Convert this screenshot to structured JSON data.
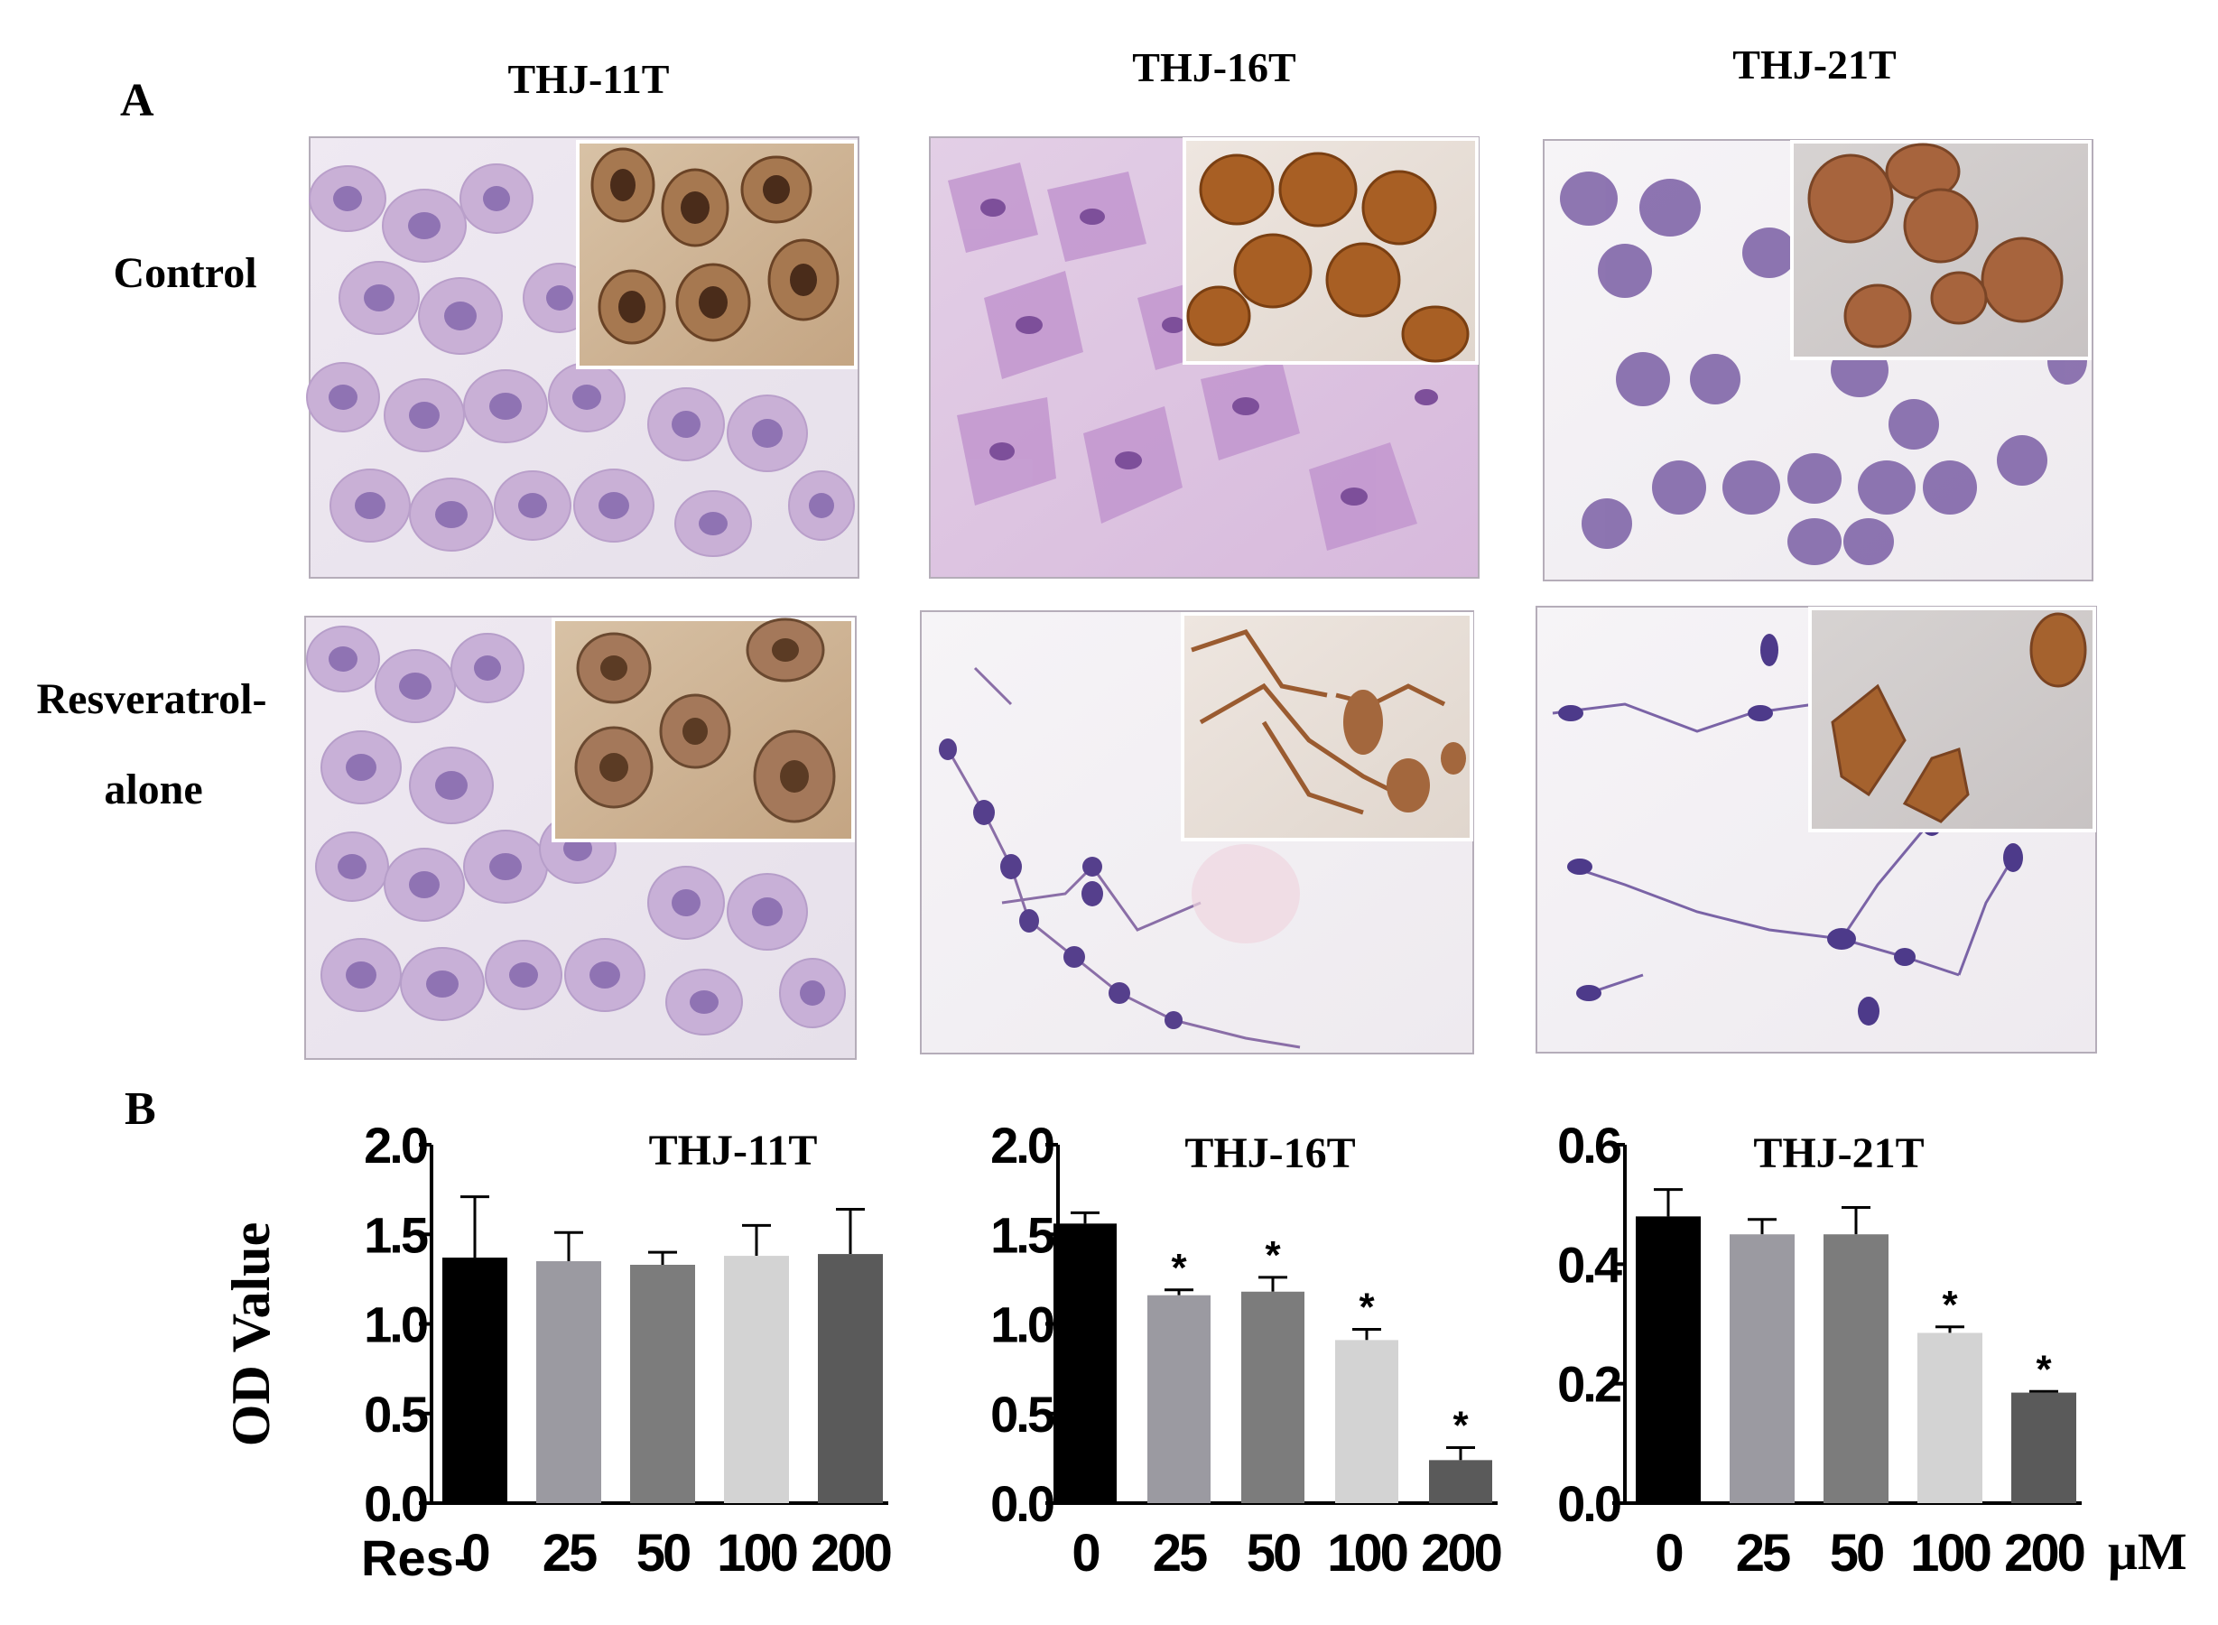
{
  "panel_a": {
    "letter": "A",
    "columns": [
      "THJ-11T",
      "THJ-16T",
      "THJ-21T"
    ],
    "rows": [
      "Control",
      "Resveratrol-alone"
    ],
    "row_label_lines": [
      [
        "Control"
      ],
      [
        "Resveratrol-",
        "alone"
      ]
    ],
    "colors": {
      "stain_purple": "#8c6aa8",
      "nucleus_purple": "#6a4f95",
      "ihc_brown": "#9b5a2a",
      "background_light": "#ece8ef"
    }
  },
  "panel_b": {
    "letter": "B",
    "ylabel": "OD Value",
    "x_prefix": "Res-",
    "unit": "μM",
    "significance_marker": "*"
  },
  "chart_data": [
    {
      "type": "bar",
      "title": "THJ-11T",
      "categories": [
        "0",
        "25",
        "50",
        "100",
        "200"
      ],
      "values": [
        1.37,
        1.35,
        1.33,
        1.38,
        1.39
      ],
      "errors": [
        0.34,
        0.16,
        0.07,
        0.17,
        0.25
      ],
      "significant": [
        false,
        false,
        false,
        false,
        false
      ],
      "ylim": [
        0,
        2.0
      ],
      "yticks": [
        "0.0",
        "0.5",
        "1.0",
        "1.5",
        "2.0"
      ],
      "ylabel": "OD Value",
      "xlabel": "Res-",
      "bar_colors": [
        "#000000",
        "#9b9aa1",
        "#7c7c7c",
        "#d3d3d3",
        "#5a5a5a"
      ]
    },
    {
      "type": "bar",
      "title": "THJ-16T",
      "categories": [
        "0",
        "25",
        "50",
        "100",
        "200"
      ],
      "values": [
        1.56,
        1.16,
        1.18,
        0.91,
        0.24
      ],
      "errors": [
        0.06,
        0.03,
        0.08,
        0.06,
        0.07
      ],
      "significant": [
        false,
        true,
        true,
        true,
        true
      ],
      "ylim": [
        0,
        2.0
      ],
      "yticks": [
        "0.0",
        "0.5",
        "1.0",
        "1.5",
        "2.0"
      ],
      "ylabel": "",
      "xlabel": "",
      "bar_colors": [
        "#000000",
        "#9b9aa1",
        "#7c7c7c",
        "#d3d3d3",
        "#5a5a5a"
      ]
    },
    {
      "type": "bar",
      "title": "THJ-21T",
      "categories": [
        "0",
        "25",
        "50",
        "100",
        "200"
      ],
      "values": [
        0.48,
        0.45,
        0.45,
        0.285,
        0.185
      ],
      "errors": [
        0.045,
        0.025,
        0.045,
        0.01,
        0.002
      ],
      "significant": [
        false,
        false,
        false,
        true,
        true
      ],
      "ylim": [
        0,
        0.6
      ],
      "yticks": [
        "0.0",
        "0.2",
        "0.4",
        "0.6"
      ],
      "ylabel": "",
      "xlabel": "μM",
      "bar_colors": [
        "#000000",
        "#9b9aa1",
        "#7c7c7c",
        "#d3d3d3",
        "#5a5a5a"
      ]
    }
  ]
}
